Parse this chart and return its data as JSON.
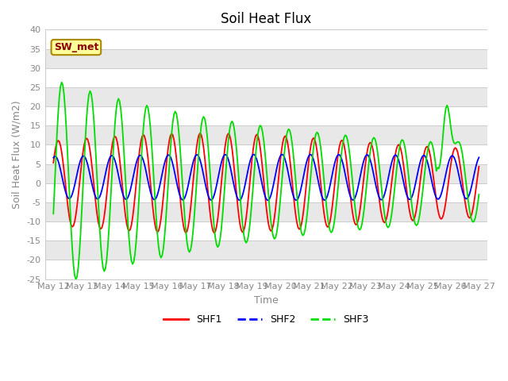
{
  "title": "Soil Heat Flux",
  "xlabel": "Time",
  "ylabel": "Soil Heat Flux (W/m2)",
  "ylim": [
    -25,
    40
  ],
  "xtick_labels": [
    "May 12",
    "May 13",
    "May 14",
    "May 15",
    "May 16",
    "May 17",
    "May 18",
    "May 19",
    "May 20",
    "May 21",
    "May 22",
    "May 23",
    "May 24",
    "May 25",
    "May 26",
    "May 27"
  ],
  "yticks": [
    -25,
    -20,
    -15,
    -10,
    -5,
    0,
    5,
    10,
    15,
    20,
    25,
    30,
    35,
    40
  ],
  "station_label": "SW_met",
  "shf1_color": "red",
  "shf2_color": "blue",
  "shf3_color": "#00dd00",
  "band_colors": [
    "#ffffff",
    "#e8e8e8"
  ],
  "spine_color": "#cccccc",
  "tick_color": "#888888",
  "title_fontsize": 12,
  "axis_label_fontsize": 9,
  "tick_fontsize": 8,
  "legend_fontsize": 9,
  "line_width": 1.3,
  "figsize": [
    6.4,
    4.8
  ],
  "dpi": 100
}
